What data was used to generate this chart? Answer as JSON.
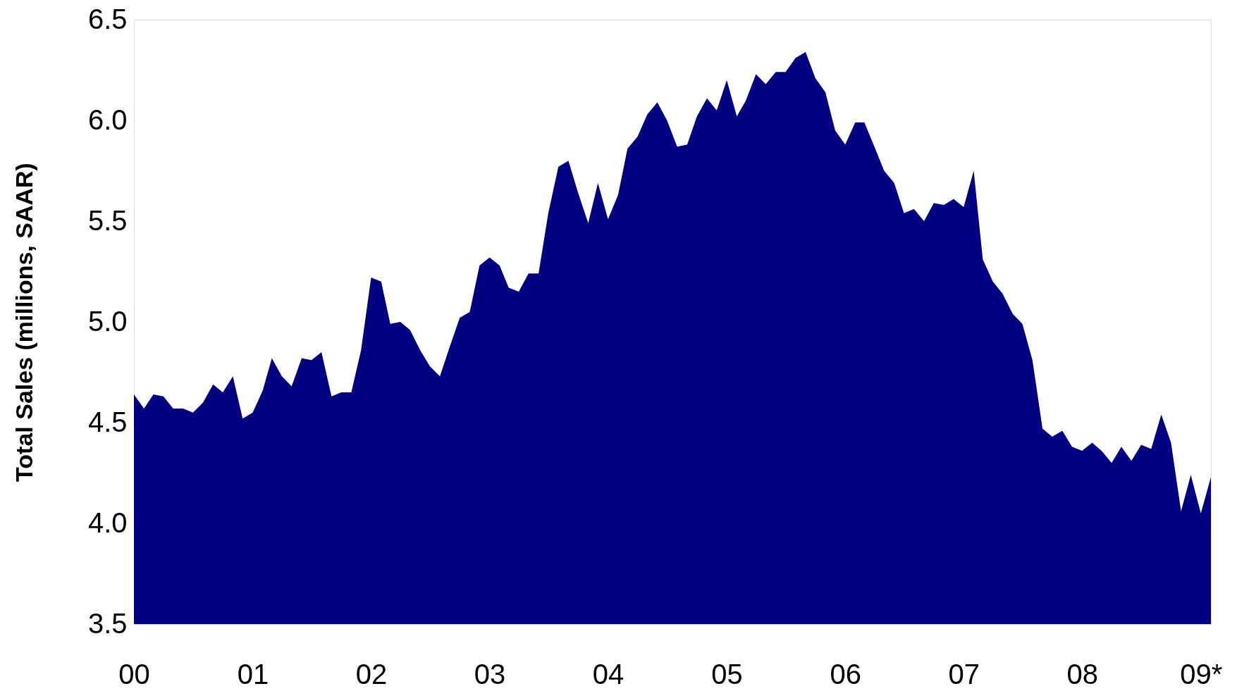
{
  "chart_data": {
    "type": "area",
    "ylabel": "Total Sales (millions, SAAR)",
    "x": [
      "2000-01",
      "2000-02",
      "2000-03",
      "2000-04",
      "2000-05",
      "2000-06",
      "2000-07",
      "2000-08",
      "2000-09",
      "2000-10",
      "2000-11",
      "2000-12",
      "2001-01",
      "2001-02",
      "2001-03",
      "2001-04",
      "2001-05",
      "2001-06",
      "2001-07",
      "2001-08",
      "2001-09",
      "2001-10",
      "2001-11",
      "2001-12",
      "2002-01",
      "2002-02",
      "2002-03",
      "2002-04",
      "2002-05",
      "2002-06",
      "2002-07",
      "2002-08",
      "2002-09",
      "2002-10",
      "2002-11",
      "2002-12",
      "2003-01",
      "2003-02",
      "2003-03",
      "2003-04",
      "2003-05",
      "2003-06",
      "2003-07",
      "2003-08",
      "2003-09",
      "2003-10",
      "2003-11",
      "2003-12",
      "2004-01",
      "2004-02",
      "2004-03",
      "2004-04",
      "2004-05",
      "2004-06",
      "2004-07",
      "2004-08",
      "2004-09",
      "2004-10",
      "2004-11",
      "2004-12",
      "2005-01",
      "2005-02",
      "2005-03",
      "2005-04",
      "2005-05",
      "2005-06",
      "2005-07",
      "2005-08",
      "2005-09",
      "2005-10",
      "2005-11",
      "2005-12",
      "2006-01",
      "2006-02",
      "2006-03",
      "2006-04",
      "2006-05",
      "2006-06",
      "2006-07",
      "2006-08",
      "2006-09",
      "2006-10",
      "2006-11",
      "2006-12",
      "2007-01",
      "2007-02",
      "2007-03",
      "2007-04",
      "2007-05",
      "2007-06",
      "2007-07",
      "2007-08",
      "2007-09",
      "2007-10",
      "2007-11",
      "2007-12",
      "2008-01",
      "2008-02",
      "2008-03",
      "2008-04",
      "2008-05",
      "2008-06",
      "2008-07",
      "2008-08",
      "2008-09",
      "2008-10",
      "2008-11",
      "2008-12",
      "2009-01",
      "2009-02"
    ],
    "series": [
      {
        "color": "#000080",
        "values": [
          4.64,
          4.57,
          4.64,
          4.63,
          4.57,
          4.57,
          4.55,
          4.6,
          4.69,
          4.65,
          4.73,
          4.52,
          4.55,
          4.66,
          4.82,
          4.73,
          4.68,
          4.82,
          4.81,
          4.85,
          4.63,
          4.65,
          4.65,
          4.86,
          5.22,
          5.2,
          4.99,
          5.0,
          4.96,
          4.86,
          4.78,
          4.73,
          4.88,
          5.02,
          5.05,
          5.28,
          5.32,
          5.28,
          5.17,
          5.15,
          5.24,
          5.24,
          5.54,
          5.77,
          5.8,
          5.64,
          5.49,
          5.69,
          5.51,
          5.63,
          5.86,
          5.92,
          6.03,
          6.09,
          6.0,
          5.87,
          5.88,
          6.02,
          6.11,
          6.05,
          6.2,
          6.02,
          6.1,
          6.23,
          6.18,
          6.24,
          6.24,
          6.31,
          6.34,
          6.21,
          6.14,
          5.95,
          5.88,
          5.99,
          5.99,
          5.87,
          5.75,
          5.69,
          5.54,
          5.56,
          5.5,
          5.59,
          5.58,
          5.61,
          5.57,
          5.75,
          5.31,
          5.2,
          5.14,
          5.04,
          4.99,
          4.81,
          4.47,
          4.43,
          4.46,
          4.38,
          4.36,
          4.4,
          4.36,
          4.3,
          4.38,
          4.31,
          4.39,
          4.37,
          4.54,
          4.4,
          4.06,
          4.24,
          4.05,
          4.23
        ]
      }
    ],
    "xlim": [
      "2000-01",
      "2009-02"
    ],
    "xticks": [
      {
        "value": "2000-01",
        "label": "00"
      },
      {
        "value": "2001-01",
        "label": "01"
      },
      {
        "value": "2002-01",
        "label": "02"
      },
      {
        "value": "2003-01",
        "label": "03"
      },
      {
        "value": "2004-01",
        "label": "04"
      },
      {
        "value": "2005-01",
        "label": "05"
      },
      {
        "value": "2006-01",
        "label": "06"
      },
      {
        "value": "2007-01",
        "label": "07"
      },
      {
        "value": "2008-01",
        "label": "08"
      },
      {
        "value": "2009-01",
        "label": "09*"
      }
    ],
    "ylim": [
      3.5,
      6.5
    ],
    "yticks": [
      {
        "value": 3.5,
        "label": "3.5"
      },
      {
        "value": 4.0,
        "label": "4.0"
      },
      {
        "value": 4.5,
        "label": "4.5"
      },
      {
        "value": 5.0,
        "label": "5.0"
      },
      {
        "value": 5.5,
        "label": "5.5"
      },
      {
        "value": 6.0,
        "label": "6.0"
      },
      {
        "value": 6.5,
        "label": "6.5"
      }
    ],
    "grid": false
  }
}
